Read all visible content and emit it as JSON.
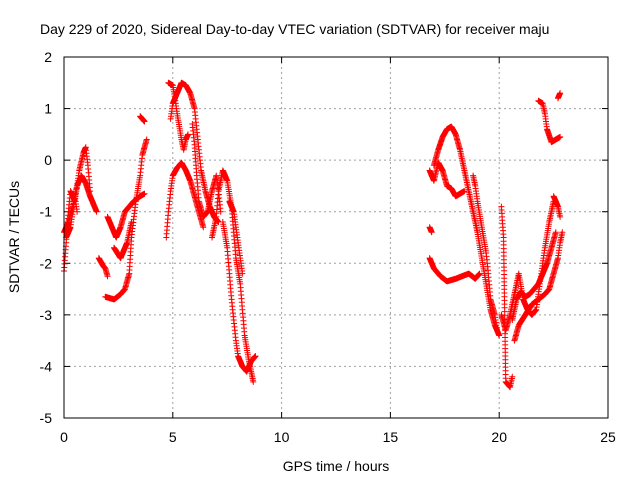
{
  "chart_data": {
    "type": "scatter",
    "title": "Day 229 of 2020, Sidereal Day-to-day VTEC variation (SDTVAR) for receiver maju",
    "xlabel": "GPS time / hours",
    "ylabel": "SDTVAR / TECUs",
    "xlim": [
      0,
      25
    ],
    "ylim": [
      -5,
      2
    ],
    "xticks": [
      0,
      5,
      10,
      15,
      20,
      25
    ],
    "yticks": [
      -5,
      -4,
      -3,
      -2,
      -1,
      0,
      1,
      2
    ],
    "grid": true,
    "marker": "+",
    "color": "#ff0000",
    "series": [
      {
        "name": "s1",
        "points": [
          [
            0.0,
            -2.15
          ],
          [
            0.1,
            -1.6
          ],
          [
            0.2,
            -1.0
          ],
          [
            0.3,
            -0.6
          ],
          [
            0.5,
            -0.8
          ],
          [
            0.7,
            -0.2
          ],
          [
            0.9,
            0.15
          ],
          [
            1.0,
            0.25
          ],
          [
            1.1,
            -0.1
          ],
          [
            1.2,
            -0.6
          ]
        ]
      },
      {
        "name": "s2",
        "points": [
          [
            0.0,
            -1.4
          ],
          [
            0.2,
            -1.2
          ],
          [
            0.4,
            -0.9
          ],
          [
            0.6,
            -0.5
          ],
          [
            0.8,
            -0.3
          ],
          [
            1.0,
            -0.45
          ],
          [
            1.2,
            -0.7
          ],
          [
            1.4,
            -0.9
          ],
          [
            1.5,
            -1.0
          ]
        ]
      },
      {
        "name": "s3",
        "points": [
          [
            0.1,
            -1.5
          ],
          [
            0.3,
            -1.3
          ],
          [
            0.5,
            -0.7
          ],
          [
            0.6,
            -1.0
          ]
        ]
      },
      {
        "name": "s4",
        "points": [
          [
            1.6,
            -1.9
          ],
          [
            1.8,
            -2.05
          ],
          [
            1.9,
            -2.1
          ],
          [
            2.0,
            -2.25
          ]
        ]
      },
      {
        "name": "s5",
        "points": [
          [
            1.9,
            -2.65
          ],
          [
            2.3,
            -2.7
          ],
          [
            2.6,
            -2.6
          ],
          [
            2.8,
            -2.5
          ],
          [
            3.0,
            -2.2
          ],
          [
            3.1,
            -1.5
          ],
          [
            3.3,
            -0.8
          ],
          [
            3.5,
            -0.3
          ],
          [
            3.6,
            0.1
          ],
          [
            3.8,
            0.4
          ]
        ]
      },
      {
        "name": "s6",
        "points": [
          [
            2.0,
            -1.1
          ],
          [
            2.4,
            -1.5
          ],
          [
            2.6,
            -1.3
          ],
          [
            2.8,
            -1.0
          ],
          [
            3.0,
            -0.9
          ],
          [
            3.2,
            -0.8
          ],
          [
            3.5,
            -0.7
          ],
          [
            3.7,
            -0.65
          ]
        ]
      },
      {
        "name": "s7",
        "points": [
          [
            2.3,
            -1.7
          ],
          [
            2.6,
            -1.9
          ],
          [
            2.9,
            -1.6
          ],
          [
            3.1,
            -1.2
          ]
        ]
      },
      {
        "name": "s8",
        "points": [
          [
            3.5,
            0.85
          ],
          [
            3.7,
            0.75
          ]
        ]
      },
      {
        "name": "s9",
        "points": [
          [
            4.7,
            -1.5
          ],
          [
            4.8,
            -1.0
          ],
          [
            4.9,
            -0.6
          ],
          [
            5.0,
            -0.3
          ],
          [
            5.2,
            -0.15
          ],
          [
            5.4,
            -0.05
          ],
          [
            5.6,
            -0.2
          ],
          [
            5.8,
            -0.4
          ],
          [
            6.0,
            -0.7
          ],
          [
            6.2,
            -1.0
          ],
          [
            6.4,
            -1.3
          ]
        ]
      },
      {
        "name": "s10",
        "points": [
          [
            4.8,
            1.5
          ],
          [
            5.0,
            1.45
          ],
          [
            5.1,
            1.2
          ],
          [
            5.2,
            0.9
          ],
          [
            5.4,
            0.4
          ],
          [
            5.5,
            0.2
          ],
          [
            5.6,
            0.4
          ],
          [
            5.7,
            0.5
          ]
        ]
      },
      {
        "name": "s11",
        "points": [
          [
            4.9,
            0.8
          ],
          [
            5.0,
            1.1
          ],
          [
            5.2,
            1.3
          ],
          [
            5.4,
            1.5
          ],
          [
            5.6,
            1.45
          ],
          [
            5.8,
            1.3
          ],
          [
            6.0,
            1.0
          ],
          [
            6.1,
            0.6
          ],
          [
            6.2,
            0.2
          ],
          [
            6.3,
            -0.2
          ],
          [
            6.5,
            -0.6
          ],
          [
            6.7,
            -0.9
          ],
          [
            6.9,
            -1.1
          ],
          [
            7.1,
            -1.2
          ]
        ]
      },
      {
        "name": "s12",
        "points": [
          [
            5.9,
            0.7
          ],
          [
            6.0,
            0.3
          ],
          [
            6.1,
            -0.3
          ],
          [
            6.2,
            -0.8
          ],
          [
            6.4,
            -1.1
          ],
          [
            6.6,
            -1.0
          ],
          [
            6.8,
            -0.6
          ],
          [
            7.0,
            -0.3
          ],
          [
            7.1,
            -0.6
          ],
          [
            7.2,
            -1.0
          ]
        ]
      },
      {
        "name": "s13",
        "points": [
          [
            6.8,
            -1.5
          ],
          [
            7.0,
            -1.1
          ],
          [
            7.1,
            -0.6
          ],
          [
            7.3,
            -0.2
          ],
          [
            7.5,
            -0.4
          ],
          [
            7.7,
            -0.9
          ],
          [
            7.8,
            -1.4
          ],
          [
            7.9,
            -1.9
          ],
          [
            8.1,
            -2.4
          ],
          [
            8.2,
            -2.9
          ],
          [
            8.3,
            -3.4
          ],
          [
            8.5,
            -3.9
          ],
          [
            8.7,
            -4.3
          ]
        ]
      },
      {
        "name": "s14",
        "points": [
          [
            7.3,
            -1.2
          ],
          [
            7.5,
            -1.7
          ],
          [
            7.6,
            -2.2
          ],
          [
            7.7,
            -2.7
          ],
          [
            7.8,
            -3.1
          ],
          [
            7.9,
            -3.5
          ],
          [
            8.0,
            -3.8
          ],
          [
            8.2,
            -4.0
          ],
          [
            8.4,
            -4.1
          ],
          [
            8.6,
            -3.9
          ],
          [
            8.8,
            -3.8
          ]
        ]
      },
      {
        "name": "s15",
        "points": [
          [
            7.6,
            -0.8
          ],
          [
            7.8,
            -1.0
          ],
          [
            8.0,
            -1.6
          ],
          [
            8.2,
            -2.2
          ]
        ]
      },
      {
        "name": "s16",
        "points": [
          [
            16.8,
            -1.3
          ],
          [
            16.9,
            -1.4
          ]
        ]
      },
      {
        "name": "s17",
        "points": [
          [
            16.8,
            -1.9
          ],
          [
            17.0,
            -2.1
          ],
          [
            17.3,
            -2.25
          ],
          [
            17.6,
            -2.35
          ],
          [
            18.0,
            -2.3
          ],
          [
            18.3,
            -2.25
          ],
          [
            18.6,
            -2.2
          ],
          [
            18.9,
            -2.3
          ],
          [
            19.1,
            -2.2
          ]
        ]
      },
      {
        "name": "s18",
        "points": [
          [
            16.8,
            -0.2
          ],
          [
            17.0,
            -0.4
          ],
          [
            17.2,
            -0.05
          ],
          [
            17.4,
            -0.2
          ],
          [
            17.6,
            -0.5
          ],
          [
            17.8,
            -0.55
          ],
          [
            18.0,
            -0.7
          ],
          [
            18.2,
            -0.65
          ],
          [
            18.4,
            -0.6
          ]
        ]
      },
      {
        "name": "s19",
        "points": [
          [
            17.0,
            -0.1
          ],
          [
            17.2,
            0.2
          ],
          [
            17.4,
            0.45
          ],
          [
            17.6,
            0.6
          ],
          [
            17.8,
            0.65
          ],
          [
            18.0,
            0.5
          ],
          [
            18.2,
            0.2
          ],
          [
            18.4,
            -0.2
          ],
          [
            18.6,
            -0.6
          ],
          [
            18.8,
            -1.0
          ],
          [
            19.0,
            -1.4
          ],
          [
            19.2,
            -1.9
          ],
          [
            19.4,
            -2.4
          ],
          [
            19.6,
            -2.9
          ],
          [
            19.8,
            -3.2
          ],
          [
            20.0,
            -3.4
          ]
        ]
      },
      {
        "name": "s20",
        "points": [
          [
            18.8,
            -0.3
          ],
          [
            18.9,
            -0.5
          ],
          [
            19.0,
            -0.8
          ],
          [
            19.2,
            -1.3
          ],
          [
            19.4,
            -1.8
          ],
          [
            19.5,
            -2.2
          ],
          [
            19.6,
            -2.7
          ],
          [
            19.8,
            -3.0
          ],
          [
            19.9,
            -3.3
          ]
        ]
      },
      {
        "name": "s21",
        "points": [
          [
            20.1,
            -0.9
          ],
          [
            20.2,
            -1.5
          ],
          [
            20.3,
            -4.3
          ],
          [
            20.5,
            -4.4
          ],
          [
            20.6,
            -4.2
          ]
        ]
      },
      {
        "name": "s22",
        "points": [
          [
            20.1,
            -3.0
          ],
          [
            20.3,
            -3.3
          ],
          [
            20.5,
            -3.0
          ],
          [
            20.7,
            -2.6
          ],
          [
            20.9,
            -2.2
          ],
          [
            21.1,
            -2.7
          ],
          [
            21.3,
            -2.9
          ],
          [
            21.5,
            -3.0
          ],
          [
            21.7,
            -2.9
          ],
          [
            21.9,
            -2.3
          ],
          [
            22.1,
            -1.7
          ],
          [
            22.3,
            -1.2
          ],
          [
            22.5,
            -0.8
          ]
        ]
      },
      {
        "name": "s23",
        "points": [
          [
            20.6,
            -3.1
          ],
          [
            20.8,
            -2.7
          ],
          [
            21.0,
            -2.55
          ],
          [
            21.2,
            -2.65
          ],
          [
            21.4,
            -2.6
          ],
          [
            21.6,
            -2.5
          ],
          [
            21.8,
            -2.4
          ],
          [
            22.0,
            -2.2
          ],
          [
            22.2,
            -2.0
          ],
          [
            22.4,
            -1.7
          ],
          [
            22.6,
            -1.4
          ]
        ]
      },
      {
        "name": "s24",
        "points": [
          [
            20.7,
            -3.5
          ],
          [
            20.9,
            -3.2
          ],
          [
            21.2,
            -3.0
          ],
          [
            21.5,
            -2.8
          ],
          [
            21.8,
            -2.7
          ],
          [
            22.1,
            -2.6
          ],
          [
            22.3,
            -2.5
          ],
          [
            22.5,
            -2.2
          ],
          [
            22.7,
            -1.9
          ],
          [
            22.8,
            -1.6
          ],
          [
            22.9,
            -1.4
          ]
        ]
      },
      {
        "name": "s25",
        "points": [
          [
            21.8,
            1.15
          ],
          [
            22.0,
            1.1
          ],
          [
            22.1,
            0.9
          ],
          [
            22.2,
            0.6
          ],
          [
            22.4,
            0.35
          ],
          [
            22.6,
            0.4
          ],
          [
            22.8,
            0.45
          ]
        ]
      },
      {
        "name": "s26",
        "points": [
          [
            22.7,
            1.2
          ],
          [
            22.8,
            1.3
          ]
        ]
      },
      {
        "name": "s27",
        "points": [
          [
            22.5,
            -0.7
          ],
          [
            22.7,
            -0.9
          ],
          [
            22.8,
            -1.1
          ]
        ]
      }
    ]
  }
}
